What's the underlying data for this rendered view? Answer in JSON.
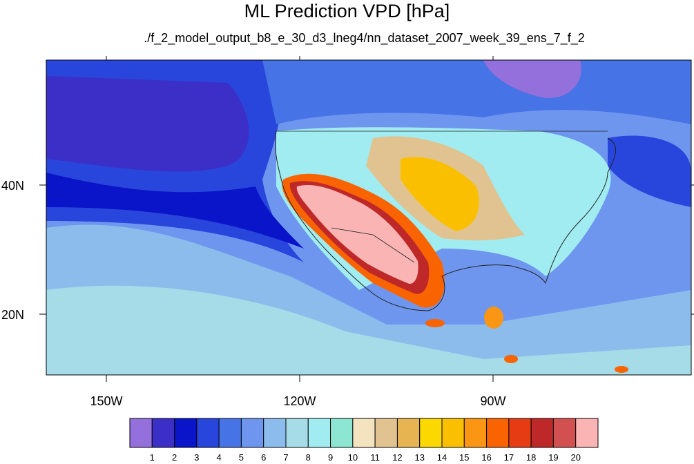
{
  "title": "ML Prediction VPD [hPa]",
  "subtitle": "./f_2_model_output_b8_e_30_d3_lneg4/nn_dataset_2007_week_39_ens_7_f_2",
  "lat_labels": [
    "40N",
    "20N"
  ],
  "lon_labels": [
    "150W",
    "120W",
    "90W"
  ],
  "colorbar": {
    "labels": [
      "1",
      "2",
      "3",
      "4",
      "5",
      "6",
      "7",
      "8",
      "9",
      "10",
      "11",
      "12",
      "13",
      "14",
      "15",
      "16",
      "17",
      "18",
      "19",
      "20"
    ],
    "colors": [
      "#9370db",
      "#3c2fc8",
      "#0a14c8",
      "#2846dc",
      "#4673e6",
      "#6e96ee",
      "#8cbcec",
      "#a5dce8",
      "#a0ecf0",
      "#8ce6d2",
      "#f3e3bf",
      "#e1c391",
      "#e6b450",
      "#fad800",
      "#fac000",
      "#fa9614",
      "#fa6400",
      "#e63c14",
      "#be2828",
      "#d25050",
      "#fab4b4"
    ]
  },
  "map": {
    "region": "Contiguous United States, Mexico and adjacent oceans",
    "variable": "VPD",
    "units": "hPa"
  }
}
